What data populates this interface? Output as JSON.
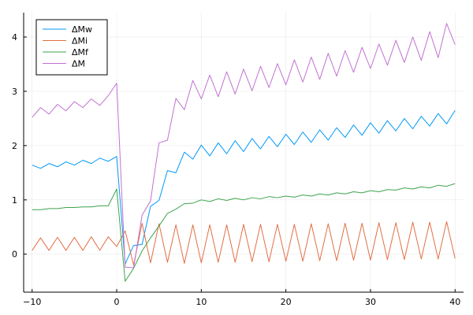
{
  "chart_data": {
    "type": "line",
    "xlim": [
      -11,
      41
    ],
    "ylim": [
      -0.7,
      4.45
    ],
    "xticks": [
      -10,
      0,
      10,
      20,
      30,
      40
    ],
    "yticks": [
      0,
      1,
      2,
      3,
      4
    ],
    "grid": true,
    "legend_position": "top-left",
    "x": [
      -10,
      -9,
      -8,
      -7,
      -6,
      -5,
      -4,
      -3,
      -2,
      -1,
      0,
      1,
      2,
      3,
      4,
      5,
      6,
      7,
      8,
      9,
      10,
      11,
      12,
      13,
      14,
      15,
      16,
      17,
      18,
      19,
      20,
      21,
      22,
      23,
      24,
      25,
      26,
      27,
      28,
      29,
      30,
      31,
      32,
      33,
      34,
      35,
      36,
      37,
      38,
      39,
      40
    ],
    "series": [
      {
        "name": "ΔMw",
        "color": "#009af9",
        "values": [
          1.64,
          1.58,
          1.67,
          1.61,
          1.7,
          1.64,
          1.73,
          1.67,
          1.77,
          1.71,
          1.8,
          -0.18,
          0.16,
          0.18,
          0.88,
          0.99,
          1.54,
          1.5,
          1.88,
          1.75,
          2.01,
          1.81,
          2.05,
          1.85,
          2.09,
          1.89,
          2.13,
          1.94,
          2.17,
          1.98,
          2.21,
          2.02,
          2.25,
          2.06,
          2.29,
          2.1,
          2.33,
          2.15,
          2.38,
          2.19,
          2.42,
          2.23,
          2.46,
          2.27,
          2.5,
          2.31,
          2.54,
          2.36,
          2.59,
          2.4,
          2.65
        ]
      },
      {
        "name": "ΔMi",
        "color": "#e26f46",
        "values": [
          0.07,
          0.3,
          0.07,
          0.31,
          0.07,
          0.31,
          0.07,
          0.32,
          0.07,
          0.32,
          0.14,
          0.43,
          -0.2,
          0.57,
          -0.16,
          0.56,
          -0.15,
          0.54,
          -0.17,
          0.54,
          -0.16,
          0.54,
          -0.15,
          0.54,
          -0.15,
          0.55,
          -0.14,
          0.55,
          -0.14,
          0.55,
          -0.13,
          0.55,
          -0.13,
          0.56,
          -0.12,
          0.56,
          -0.12,
          0.57,
          -0.11,
          0.57,
          -0.11,
          0.58,
          -0.1,
          0.58,
          -0.1,
          0.59,
          -0.09,
          0.59,
          -0.09,
          0.6,
          -0.08
        ]
      },
      {
        "name": "ΔMf",
        "color": "#3da44d",
        "values": [
          0.82,
          0.82,
          0.84,
          0.84,
          0.86,
          0.86,
          0.87,
          0.87,
          0.89,
          0.89,
          1.2,
          -0.5,
          -0.26,
          0.06,
          0.3,
          0.52,
          0.75,
          0.83,
          0.93,
          0.94,
          1.0,
          0.97,
          1.02,
          0.99,
          1.03,
          1.0,
          1.04,
          1.02,
          1.06,
          1.04,
          1.07,
          1.05,
          1.09,
          1.07,
          1.11,
          1.09,
          1.13,
          1.11,
          1.15,
          1.13,
          1.17,
          1.15,
          1.19,
          1.18,
          1.22,
          1.2,
          1.24,
          1.22,
          1.27,
          1.25,
          1.3
        ]
      },
      {
        "name": "ΔM",
        "color": "#c271d2",
        "values": [
          2.52,
          2.7,
          2.58,
          2.76,
          2.64,
          2.81,
          2.7,
          2.86,
          2.74,
          2.92,
          3.15,
          -0.24,
          -0.25,
          0.72,
          0.98,
          2.05,
          2.1,
          2.87,
          2.66,
          3.2,
          2.86,
          3.3,
          2.9,
          3.36,
          2.95,
          3.41,
          3.01,
          3.46,
          3.07,
          3.51,
          3.12,
          3.58,
          3.17,
          3.63,
          3.22,
          3.7,
          3.28,
          3.75,
          3.35,
          3.81,
          3.42,
          3.87,
          3.48,
          3.94,
          3.53,
          4.0,
          3.57,
          4.1,
          3.62,
          4.25,
          3.86
        ]
      }
    ]
  }
}
